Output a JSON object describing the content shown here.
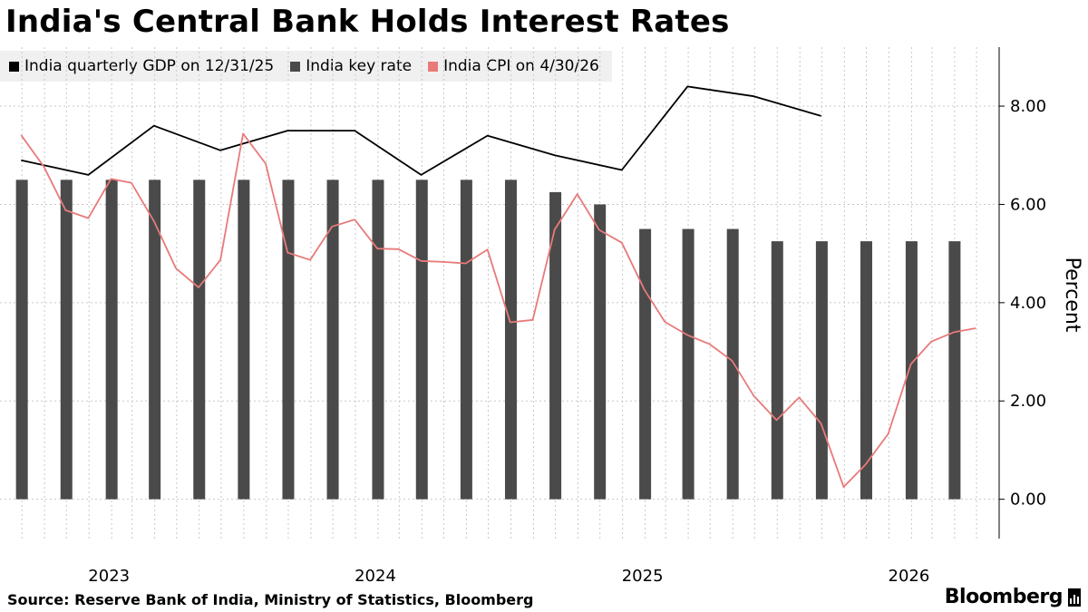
{
  "title": "India's Central Bank Holds Interest Rates",
  "legend": [
    {
      "label": "India quarterly GDP on 12/31/25",
      "color": "#000000"
    },
    {
      "label": "India key rate",
      "color": "#4a4a4a"
    },
    {
      "label": "India CPI on 4/30/26",
      "color": "#e87a7a"
    }
  ],
  "footer": {
    "source": "Source: Reserve Bank of India, Ministry of Statistics, Bloomberg",
    "brand": "Bloomberg"
  },
  "chart_data": {
    "type": "bar",
    "title": "India's Central Bank Holds Interest Rates",
    "ylabel": "Percent",
    "ylim": [
      -0.8,
      9.2
    ],
    "yticks": [
      0,
      2,
      4,
      6,
      8
    ],
    "ytick_labels": [
      "0.00",
      "2.00",
      "4.00",
      "6.00",
      "8.00"
    ],
    "xlim": [
      "2022-09-01",
      "2026-06-01"
    ],
    "xtick_labels": [
      {
        "label": "2023",
        "date": "2023-01-01"
      },
      {
        "label": "2024",
        "date": "2024-01-01"
      },
      {
        "label": "2025",
        "date": "2025-01-01"
      },
      {
        "label": "2026",
        "date": "2026-01-01"
      }
    ],
    "grid": true,
    "legend_position": "top-left",
    "series": [
      {
        "name": "India key rate",
        "type": "bar",
        "color": "#4a4a4a",
        "x": [
          "2022-10-01",
          "2022-12-01",
          "2023-02-01",
          "2023-04-01",
          "2023-06-01",
          "2023-08-01",
          "2023-10-01",
          "2023-12-01",
          "2024-02-01",
          "2024-04-01",
          "2024-06-01",
          "2024-08-01",
          "2024-10-01",
          "2024-12-01",
          "2025-02-01",
          "2025-04-01",
          "2025-06-01",
          "2025-08-01",
          "2025-10-01",
          "2025-12-01",
          "2026-02-01",
          "2026-04-01"
        ],
        "values": [
          6.5,
          6.5,
          6.5,
          6.5,
          6.5,
          6.5,
          6.5,
          6.5,
          6.5,
          6.5,
          6.5,
          6.5,
          6.25,
          6.0,
          5.5,
          5.5,
          5.5,
          5.25,
          5.25,
          5.25,
          5.25,
          5.25
        ]
      },
      {
        "name": "India quarterly GDP on 12/31/25",
        "type": "line",
        "color": "#000000",
        "x": [
          "2022-09-30",
          "2022-12-31",
          "2023-03-31",
          "2023-06-30",
          "2023-09-30",
          "2023-12-31",
          "2024-03-31",
          "2024-06-30",
          "2024-09-30",
          "2024-12-31",
          "2025-03-31",
          "2025-06-30",
          "2025-09-30"
        ],
        "values": [
          6.9,
          6.6,
          7.6,
          7.1,
          7.5,
          7.5,
          6.6,
          7.4,
          7.0,
          6.7,
          8.4,
          8.2,
          7.8
        ]
      },
      {
        "name": "India CPI on 4/30/26",
        "type": "line",
        "color": "#e87a7a",
        "x": [
          "2022-09-30",
          "2022-10-31",
          "2022-11-30",
          "2022-12-31",
          "2023-01-31",
          "2023-02-28",
          "2023-03-31",
          "2023-04-30",
          "2023-05-31",
          "2023-06-30",
          "2023-07-31",
          "2023-08-31",
          "2023-09-30",
          "2023-10-31",
          "2023-11-30",
          "2023-12-31",
          "2024-01-31",
          "2024-02-29",
          "2024-03-31",
          "2024-04-30",
          "2024-05-31",
          "2024-06-30",
          "2024-07-31",
          "2024-08-31",
          "2024-09-30",
          "2024-10-31",
          "2024-11-30",
          "2024-12-31",
          "2025-01-31",
          "2025-02-28",
          "2025-03-31",
          "2025-04-30",
          "2025-05-31",
          "2025-06-30",
          "2025-07-31",
          "2025-08-31",
          "2025-09-30",
          "2025-10-31",
          "2025-11-30",
          "2025-12-31",
          "2026-01-31",
          "2026-02-28",
          "2026-03-31",
          "2026-04-30"
        ],
        "values": [
          7.41,
          6.77,
          5.88,
          5.72,
          6.52,
          6.44,
          5.66,
          4.7,
          4.31,
          4.87,
          7.44,
          6.83,
          5.02,
          4.87,
          5.55,
          5.69,
          5.1,
          5.09,
          4.85,
          4.83,
          4.8,
          5.08,
          3.6,
          3.65,
          5.49,
          6.21,
          5.48,
          5.22,
          4.26,
          3.61,
          3.34,
          3.16,
          2.82,
          2.1,
          1.61,
          2.07,
          1.54,
          0.25,
          0.71,
          1.33,
          2.75,
          3.21,
          3.4,
          3.48
        ]
      }
    ]
  }
}
